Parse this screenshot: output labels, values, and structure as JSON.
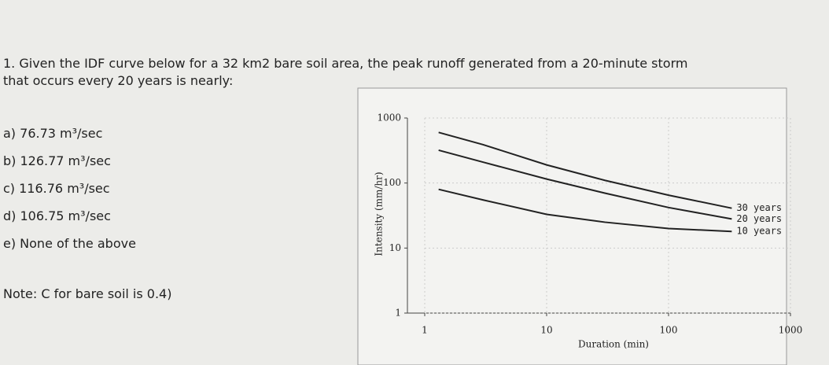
{
  "question": "1. Given the IDF curve below for a 32 km2 bare soil area, the peak runoff generated from a 20-minute storm that occurs every 20 years is nearly:",
  "options": [
    "a) 76.73 m³/sec",
    "b) 126.77 m³/sec",
    "c) 116.76 m³/sec",
    "d) 106.75 m³/sec",
    "e) None of the above"
  ],
  "note": "Note: C for bare soil is 0.4)",
  "chart_data": {
    "type": "line",
    "x_label": "Duration (min)",
    "y_label": "Intensity (mm/hr)",
    "xscale": "log",
    "yscale": "log",
    "grid": true,
    "x": [
      1.3,
      3,
      10,
      30,
      100,
      330
    ],
    "series": [
      {
        "name": "30 years",
        "color": "#222222",
        "values": [
          600,
          390,
          190,
          110,
          65,
          41
        ]
      },
      {
        "name": "20 years",
        "color": "#222222",
        "values": [
          320,
          210,
          115,
          70,
          42,
          28
        ]
      },
      {
        "name": "10 years",
        "color": "#222222",
        "values": [
          80,
          55,
          33,
          25,
          20,
          18
        ]
      }
    ],
    "xlim": [
      1,
      1000
    ],
    "xticks": [
      1,
      10,
      100,
      1000
    ],
    "ylim": [
      1,
      1000
    ],
    "yticks": [
      1,
      10,
      100,
      1000
    ]
  }
}
